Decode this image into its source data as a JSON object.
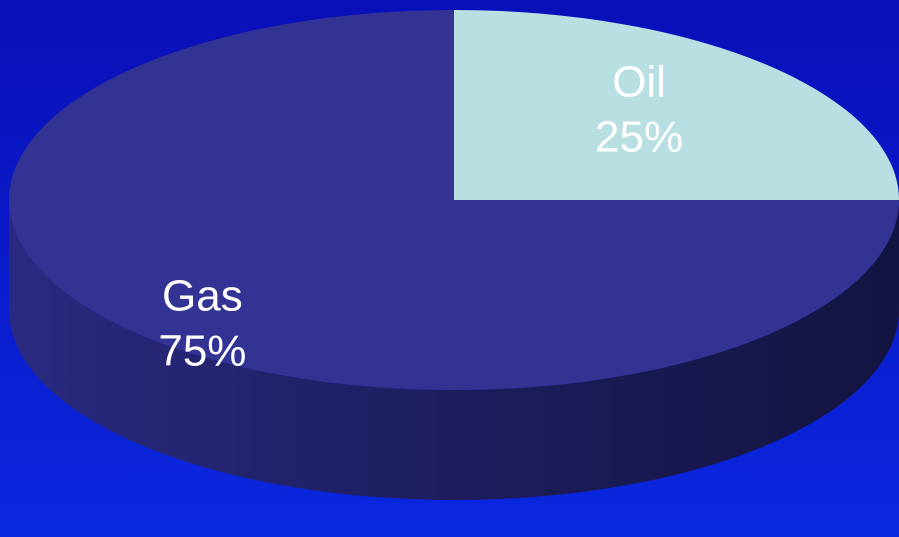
{
  "chart_data": {
    "type": "pie",
    "style": "3d",
    "slices": [
      {
        "label": "Oil",
        "value": 25,
        "value_label": "25%",
        "color": "#b8dfe2"
      },
      {
        "label": "Gas",
        "value": 75,
        "value_label": "75%",
        "color": "#333393"
      }
    ],
    "background_color": "#0a14c8",
    "legend": "none"
  }
}
